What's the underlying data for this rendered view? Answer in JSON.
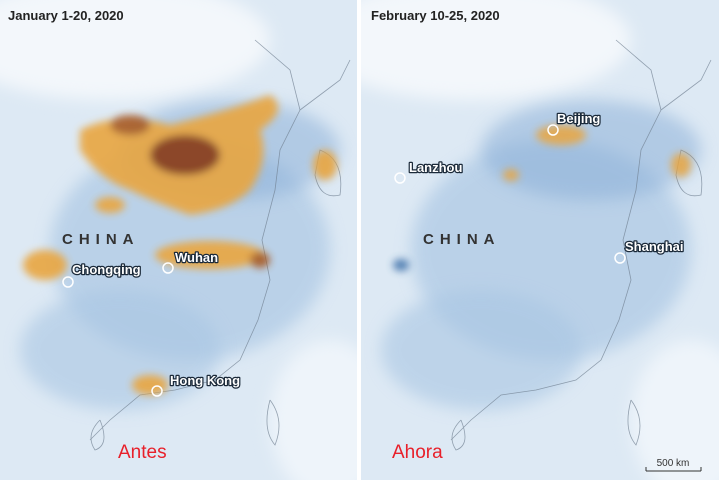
{
  "panels": [
    {
      "date": "January 1-20, 2020",
      "country": "CHINA",
      "caption": "Antes",
      "cities": [
        "Chongqing",
        "Wuhan",
        "Hong Kong"
      ]
    },
    {
      "date": "February 10-25, 2020",
      "country": "CHINA",
      "caption": "Ahora",
      "cities": [
        "Beijing",
        "Lanzhou",
        "Shanghai"
      ]
    }
  ],
  "scale_bar": "500 km"
}
